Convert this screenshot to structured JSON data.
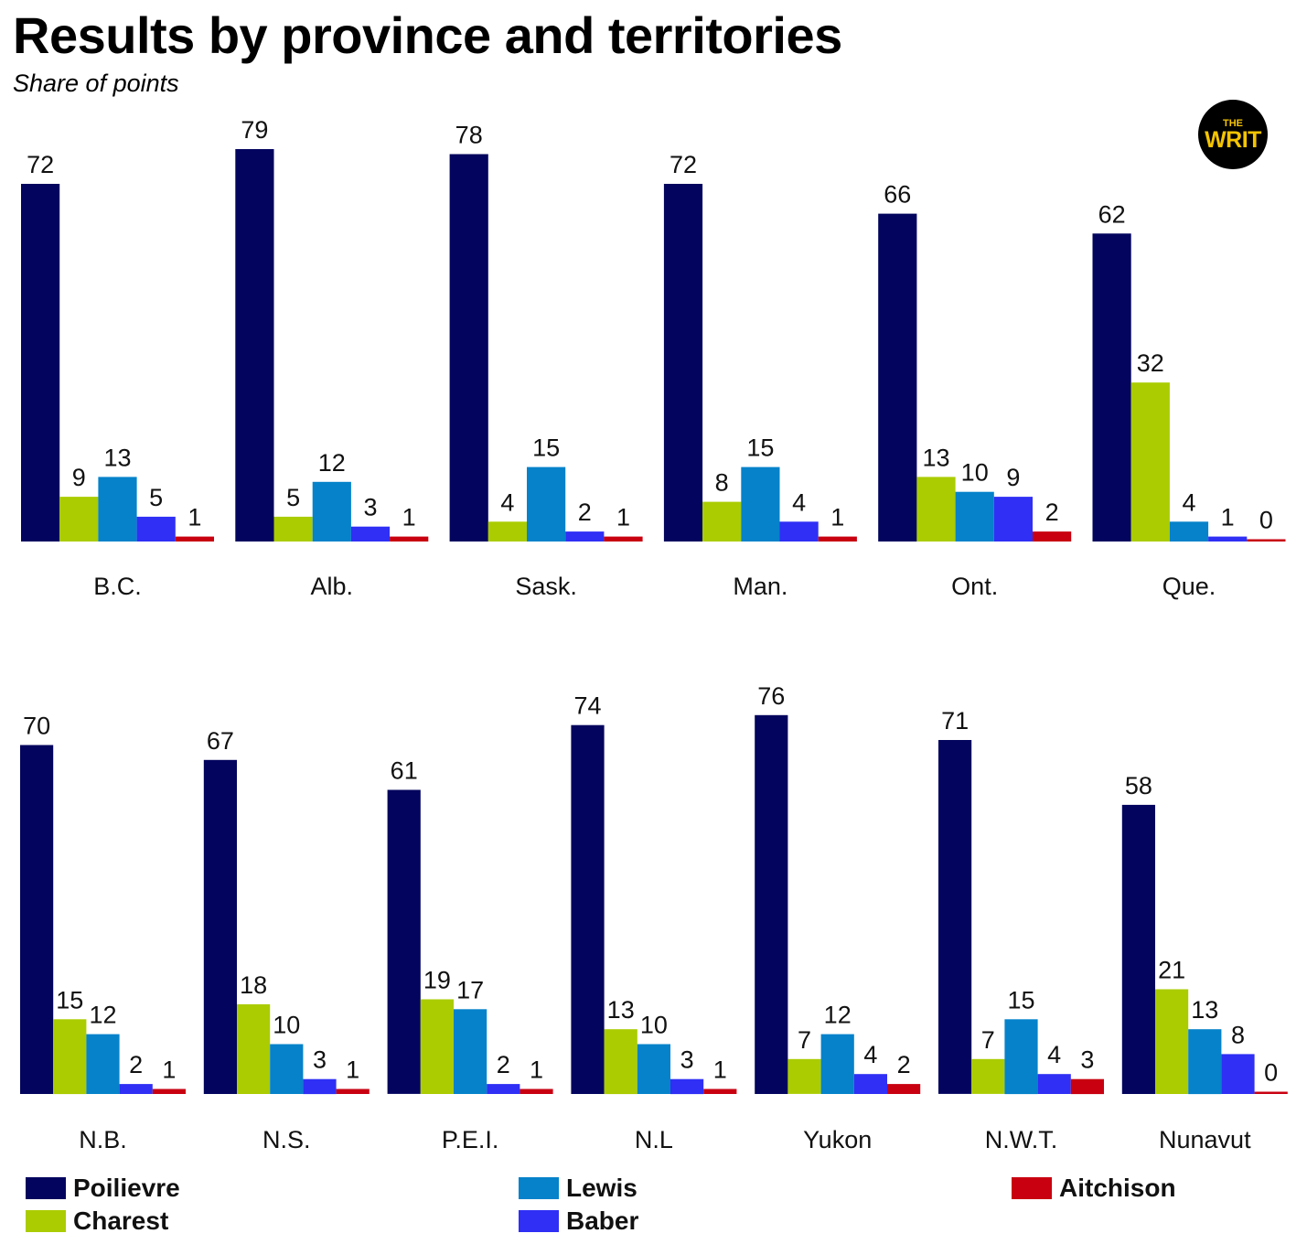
{
  "header": {
    "title": "Results by province and territories",
    "subtitle": "Share of points"
  },
  "logo": {
    "top_text": "THE",
    "main_text": "WRIT"
  },
  "colors": {
    "Poilievre": "#03045e",
    "Charest": "#aacc00",
    "Lewis": "#0582ca",
    "Baber": "#2f2ff5",
    "Aitchison": "#c80010"
  },
  "chart_data": {
    "type": "bar",
    "title": "Results by province and territories",
    "subtitle": "Share of points",
    "xlabel": "",
    "ylabel": "",
    "grid": false,
    "legend_position": "bottom",
    "series_names": [
      "Poilievre",
      "Charest",
      "Lewis",
      "Baber",
      "Aitchison"
    ],
    "panels": [
      {
        "categories": [
          "B.C.",
          "Alb.",
          "Sask.",
          "Man.",
          "Ont.",
          "Que."
        ],
        "series": [
          {
            "name": "Poilievre",
            "values": [
              72,
              79,
              78,
              72,
              66,
              62
            ]
          },
          {
            "name": "Charest",
            "values": [
              9,
              5,
              4,
              8,
              13,
              32
            ]
          },
          {
            "name": "Lewis",
            "values": [
              13,
              12,
              15,
              15,
              10,
              4
            ]
          },
          {
            "name": "Baber",
            "values": [
              5,
              3,
              2,
              4,
              9,
              1
            ]
          },
          {
            "name": "Aitchison",
            "values": [
              1,
              1,
              1,
              1,
              2,
              0
            ]
          }
        ]
      },
      {
        "categories": [
          "N.B.",
          "N.S.",
          "P.E.I.",
          "N.L",
          "Yukon",
          "N.W.T.",
          "Nunavut"
        ],
        "series": [
          {
            "name": "Poilievre",
            "values": [
              70,
              67,
              61,
              74,
              76,
              71,
              58
            ]
          },
          {
            "name": "Charest",
            "values": [
              15,
              18,
              19,
              13,
              7,
              7,
              21
            ]
          },
          {
            "name": "Lewis",
            "values": [
              12,
              10,
              17,
              10,
              12,
              15,
              13
            ]
          },
          {
            "name": "Baber",
            "values": [
              2,
              3,
              2,
              3,
              4,
              4,
              8
            ]
          },
          {
            "name": "Aitchison",
            "values": [
              1,
              1,
              1,
              1,
              2,
              3,
              0
            ]
          }
        ]
      }
    ]
  }
}
